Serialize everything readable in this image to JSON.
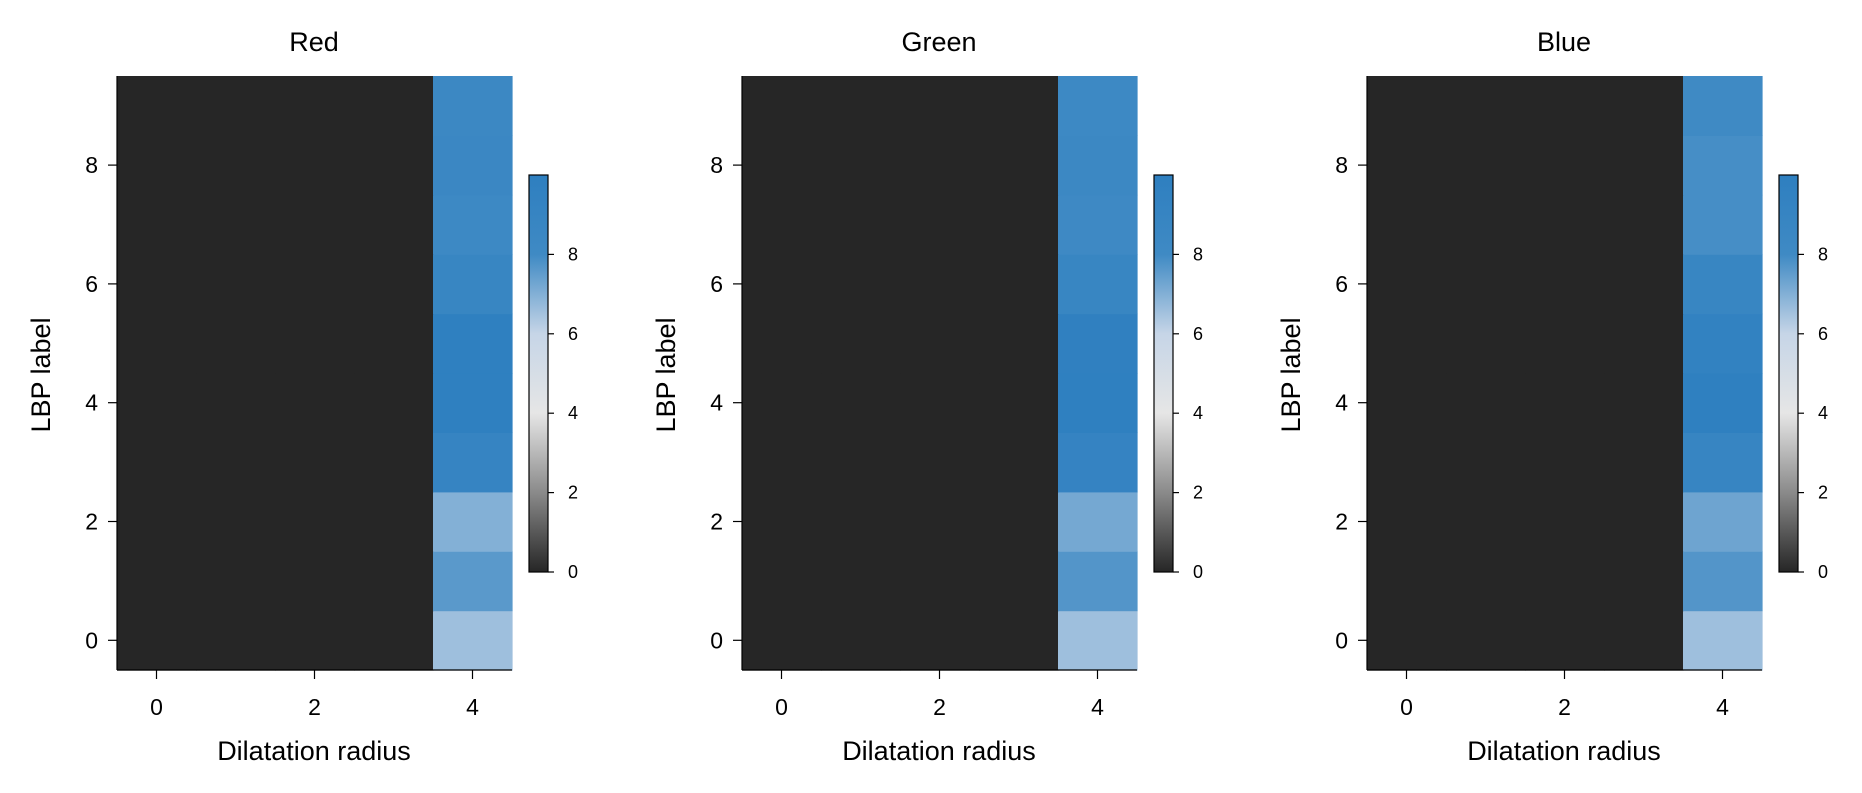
{
  "colorbar": {
    "ticks": [
      0,
      2,
      4,
      6,
      8
    ],
    "range": [
      0,
      10
    ],
    "colors": [
      "#262626",
      "#8a8a8a",
      "#e6e6e6",
      "#c6d5e7",
      "#3f8ac4",
      "#2e7fc0"
    ]
  },
  "chart_data": [
    {
      "type": "heatmap",
      "title": "Red",
      "xlabel": "Dilatation radius",
      "ylabel": "LBP label",
      "x_ticks": [
        0,
        2,
        4
      ],
      "y_ticks": [
        0,
        2,
        4,
        6,
        8
      ],
      "x": [
        0,
        1,
        2,
        3,
        4
      ],
      "y": [
        0,
        1,
        2,
        3,
        4,
        5,
        6,
        7,
        8,
        9
      ],
      "z": [
        [
          0,
          0,
          0,
          0,
          6.6
        ],
        [
          0,
          0,
          0,
          0,
          7.6
        ],
        [
          0,
          0,
          0,
          0,
          7.0
        ],
        [
          0,
          0,
          0,
          0,
          9.1
        ],
        [
          0,
          0,
          0,
          0,
          9.9
        ],
        [
          0,
          0,
          0,
          0,
          9.9
        ],
        [
          0,
          0,
          0,
          0,
          8.8
        ],
        [
          0,
          0,
          0,
          0,
          8.2
        ],
        [
          0,
          0,
          0,
          0,
          8.5
        ],
        [
          0,
          0,
          0,
          0,
          8.3
        ]
      ]
    },
    {
      "type": "heatmap",
      "title": "Green",
      "xlabel": "Dilatation radius",
      "ylabel": "LBP label",
      "x_ticks": [
        0,
        2,
        4
      ],
      "y_ticks": [
        0,
        2,
        4,
        6,
        8
      ],
      "x": [
        0,
        1,
        2,
        3,
        4
      ],
      "y": [
        0,
        1,
        2,
        3,
        4,
        5,
        6,
        7,
        8,
        9
      ],
      "z": [
        [
          0,
          0,
          0,
          0,
          6.6
        ],
        [
          0,
          0,
          0,
          0,
          7.7
        ],
        [
          0,
          0,
          0,
          0,
          7.2
        ],
        [
          0,
          0,
          0,
          0,
          9.2
        ],
        [
          0,
          0,
          0,
          0,
          9.9
        ],
        [
          0,
          0,
          0,
          0,
          9.8
        ],
        [
          0,
          0,
          0,
          0,
          8.8
        ],
        [
          0,
          0,
          0,
          0,
          8.1
        ],
        [
          0,
          0,
          0,
          0,
          8.4
        ],
        [
          0,
          0,
          0,
          0,
          8.2
        ]
      ]
    },
    {
      "type": "heatmap",
      "title": "Blue",
      "xlabel": "Dilatation radius",
      "ylabel": "LBP label",
      "x_ticks": [
        0,
        2,
        4
      ],
      "y_ticks": [
        0,
        2,
        4,
        6,
        8
      ],
      "x": [
        0,
        1,
        2,
        3,
        4
      ],
      "y": [
        0,
        1,
        2,
        3,
        4,
        5,
        6,
        7,
        8,
        9
      ],
      "z": [
        [
          0,
          0,
          0,
          0,
          6.6
        ],
        [
          0,
          0,
          0,
          0,
          7.7
        ],
        [
          0,
          0,
          0,
          0,
          7.3
        ],
        [
          0,
          0,
          0,
          0,
          9.0
        ],
        [
          0,
          0,
          0,
          0,
          9.9
        ],
        [
          0,
          0,
          0,
          0,
          9.5
        ],
        [
          0,
          0,
          0,
          0,
          8.8
        ],
        [
          0,
          0,
          0,
          0,
          7.9
        ],
        [
          0,
          0,
          0,
          0,
          7.9
        ],
        [
          0,
          0,
          0,
          0,
          8.0
        ]
      ]
    }
  ]
}
